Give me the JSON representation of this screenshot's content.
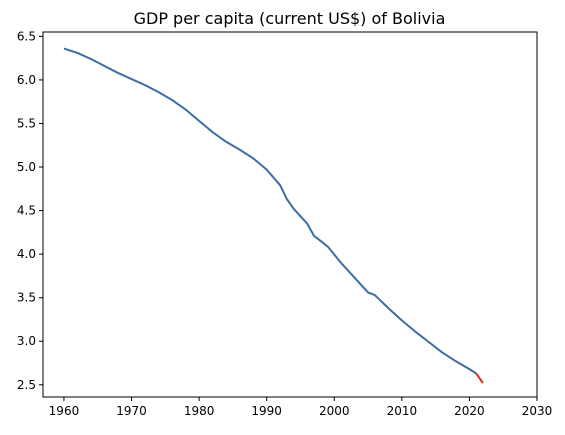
{
  "chart_data": {
    "type": "line",
    "title": "GDP per capita (current US$) of Bolivia",
    "xlabel": "",
    "ylabel": "",
    "xlim": [
      1956.9,
      2030
    ],
    "ylim": [
      2.36,
      6.55
    ],
    "x_ticks": [
      1960,
      1970,
      1980,
      1990,
      2000,
      2010,
      2020,
      2030
    ],
    "y_ticks": [
      2.5,
      3.0,
      3.5,
      4.0,
      4.5,
      5.0,
      5.5,
      6.0,
      6.5
    ],
    "grid": false,
    "series": [
      {
        "color": "#3a6ea5",
        "x": [
          1960,
          1962,
          1964,
          1966,
          1968,
          1970,
          1972,
          1974,
          1976,
          1978,
          1980,
          1982,
          1984,
          1986,
          1988,
          1990,
          1992,
          1993,
          1994,
          1996,
          1997,
          1999,
          2001,
          2003,
          2005,
          2006,
          2008,
          2010,
          2012,
          2014,
          2016,
          2018,
          2020,
          2021
        ],
        "values": [
          6.36,
          6.31,
          6.24,
          6.16,
          6.08,
          6.01,
          5.94,
          5.86,
          5.77,
          5.66,
          5.53,
          5.4,
          5.29,
          5.2,
          5.1,
          4.97,
          4.79,
          4.63,
          4.52,
          4.35,
          4.21,
          4.09,
          3.9,
          3.73,
          3.56,
          3.53,
          3.38,
          3.24,
          3.11,
          2.99,
          2.87,
          2.77,
          2.68,
          2.63
        ]
      },
      {
        "color": "#e0291b",
        "x": [
          2021,
          2022
        ],
        "values": [
          2.63,
          2.52
        ]
      }
    ]
  }
}
